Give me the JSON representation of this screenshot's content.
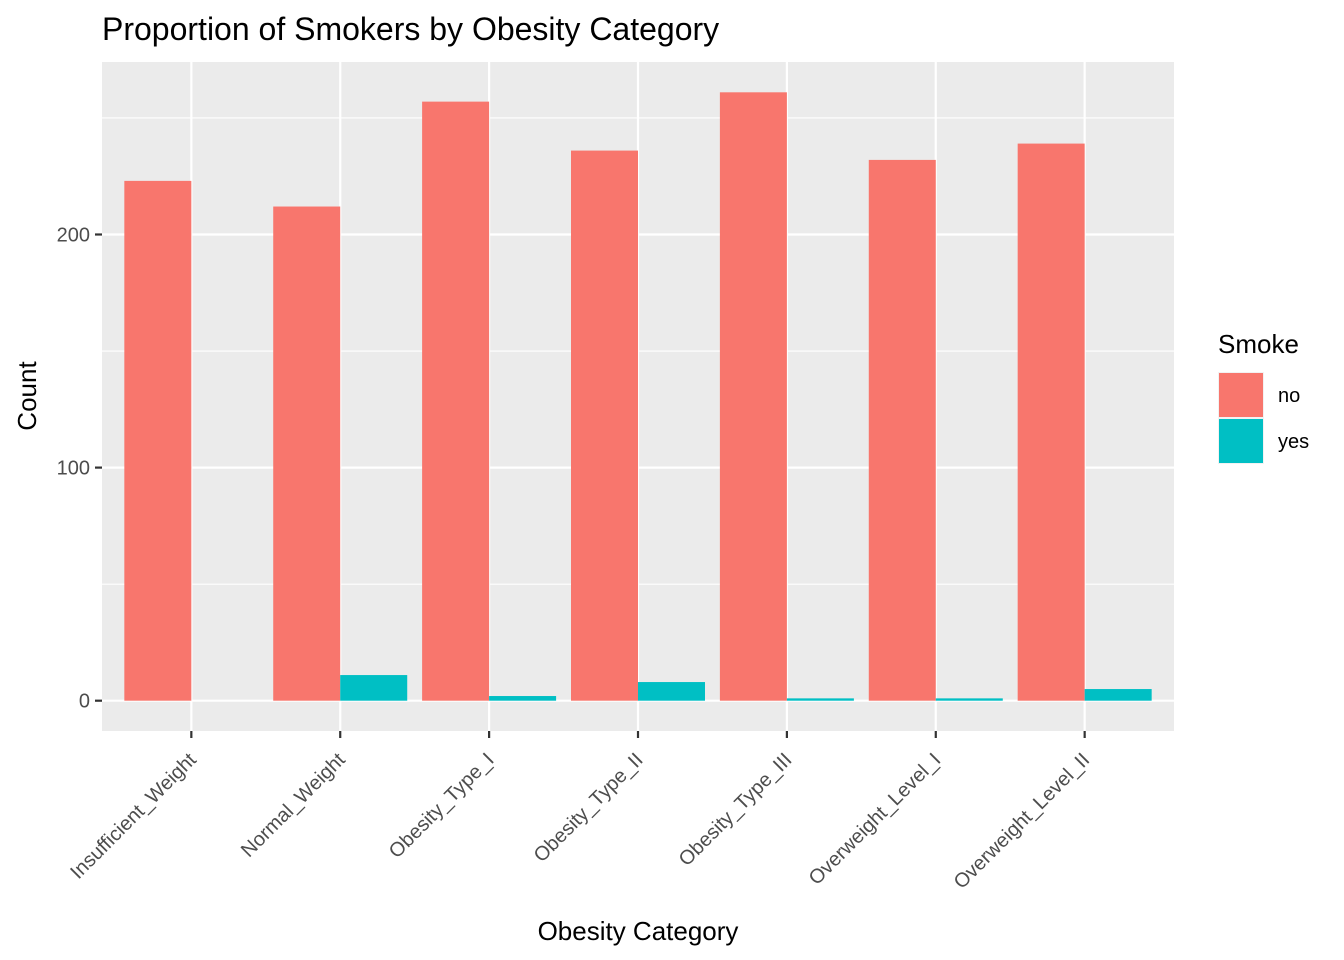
{
  "chart_data": {
    "type": "bar",
    "title": "Proportion of Smokers by Obesity Category",
    "xlabel": "Obesity Category",
    "ylabel": "Count",
    "categories": [
      "Insufficient_Weight",
      "Normal_Weight",
      "Obesity_Type_I",
      "Obesity_Type_II",
      "Obesity_Type_III",
      "Overweight_Level_I",
      "Overweight_Level_II"
    ],
    "series": [
      {
        "name": "no",
        "color": "#F8766D",
        "values": [
          223,
          212,
          257,
          236,
          261,
          232,
          239
        ]
      },
      {
        "name": "yes",
        "color": "#00BFC4",
        "values": [
          0,
          11,
          2,
          8,
          1,
          1,
          5
        ]
      }
    ],
    "ylim": [
      -13,
      274
    ],
    "yticks": [
      0,
      100,
      200
    ],
    "grid": true,
    "legend": {
      "title": "Smoke",
      "position": "right"
    },
    "panel_background": "#EBEBEB",
    "grid_color": "#FFFFFF"
  }
}
